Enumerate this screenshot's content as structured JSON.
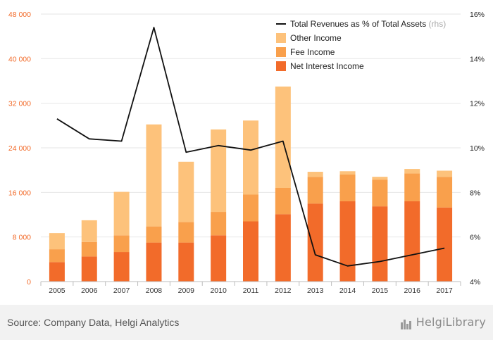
{
  "chart_data": {
    "type": "bar",
    "categories": [
      "2005",
      "2006",
      "2007",
      "2008",
      "2009",
      "2010",
      "2011",
      "2012",
      "2013",
      "2014",
      "2015",
      "2016",
      "2017"
    ],
    "series": [
      {
        "name": "Net Interest Income",
        "color": "#f26b2a",
        "values": [
          3500,
          4500,
          5300,
          7000,
          7000,
          8300,
          10800,
          12100,
          14000,
          14400,
          13500,
          14400,
          13300
        ]
      },
      {
        "name": "Fee Income",
        "color": "#f9a04c",
        "values": [
          2300,
          2600,
          3000,
          2900,
          3700,
          4200,
          4800,
          4700,
          4800,
          4800,
          4800,
          5000,
          5500
        ]
      },
      {
        "name": "Other Income",
        "color": "#fdc27b",
        "values": [
          2900,
          3900,
          7800,
          18300,
          10800,
          14800,
          13300,
          18200,
          900,
          600,
          500,
          800,
          1100
        ]
      }
    ],
    "line_series": {
      "name": "Total Revenues as % of Total Assets",
      "name_suffix": "(rhs)",
      "color": "#111111",
      "values": [
        11.3,
        10.4,
        10.3,
        15.4,
        9.8,
        10.1,
        9.9,
        10.3,
        5.2,
        4.7,
        4.9,
        5.2,
        5.5
      ]
    },
    "y_left": {
      "min": 0,
      "max": 48000,
      "ticks": [
        0,
        8000,
        16000,
        24000,
        32000,
        40000,
        48000
      ],
      "tick_labels": [
        "0",
        "8 000",
        "16 000",
        "24 000",
        "32 000",
        "40 000",
        "48 000"
      ],
      "color": "#f26b2a"
    },
    "y_right": {
      "min": 4,
      "max": 16,
      "ticks": [
        4,
        6,
        8,
        10,
        12,
        14,
        16
      ],
      "tick_labels": [
        "4%",
        "6%",
        "8%",
        "10%",
        "12%",
        "14%",
        "16%"
      ],
      "color": "#222222"
    },
    "grid": true,
    "legend_position": "top-right"
  },
  "legend": [
    {
      "label": "Total Revenues as % of Total Assets",
      "suffix": "(rhs)",
      "kind": "line",
      "color": "#111111"
    },
    {
      "label": "Other Income",
      "kind": "box",
      "color": "#fdc27b"
    },
    {
      "label": "Fee Income",
      "kind": "box",
      "color": "#f9a04c"
    },
    {
      "label": "Net Interest Income",
      "kind": "box",
      "color": "#f26b2a"
    }
  ],
  "footer": {
    "source": "Source: Company Data, Helgi Analytics",
    "logo_text": "HelgiLibrary",
    "logo_icon": "library-books-icon"
  }
}
